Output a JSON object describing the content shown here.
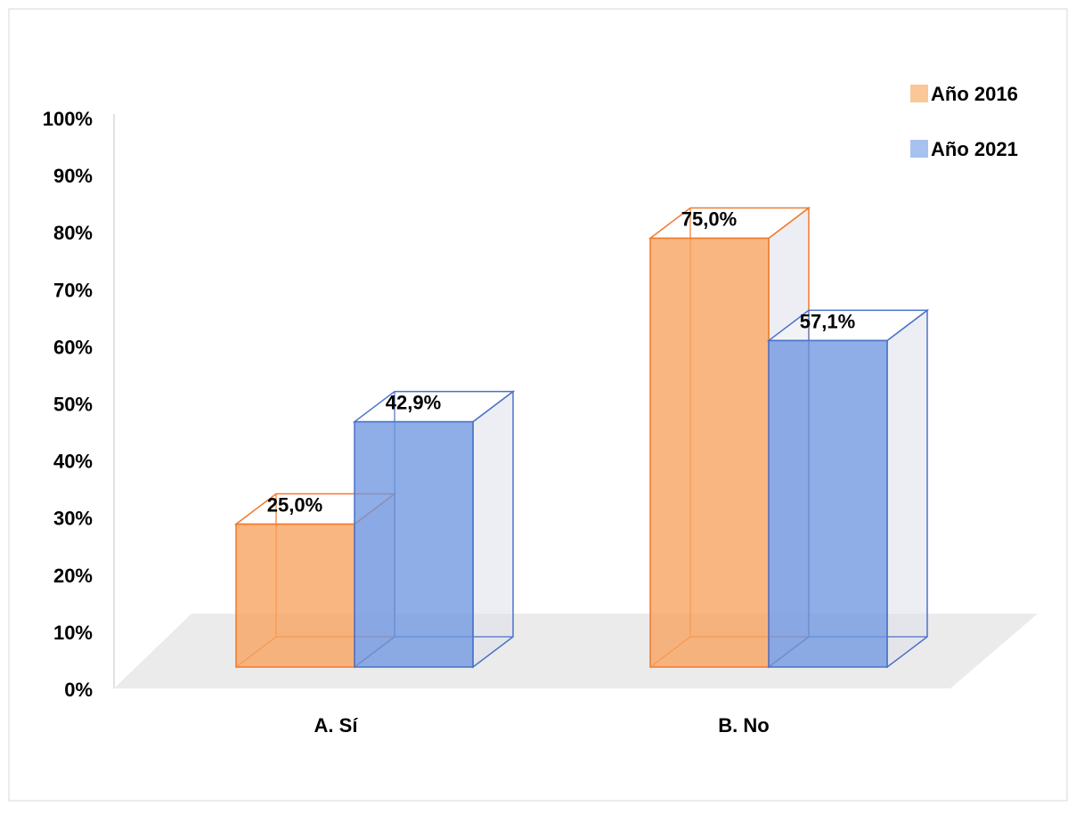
{
  "chart_data": {
    "type": "bar",
    "title": "",
    "xlabel": "",
    "ylabel": "",
    "categories": [
      "A. Sí",
      "B. No"
    ],
    "series": [
      {
        "name": "Año 2016",
        "values": [
          25.0,
          75.0
        ],
        "labels": [
          "25,0%",
          "75,0%"
        ],
        "color": "#F8A15C"
      },
      {
        "name": "Año 2021",
        "values": [
          42.9,
          57.1
        ],
        "labels": [
          "42,9%",
          "57,1%"
        ],
        "color": "#6F96DF"
      }
    ],
    "ylim": [
      0,
      100
    ],
    "yticks": [
      "0%",
      "10%",
      "20%",
      "30%",
      "40%",
      "50%",
      "60%",
      "70%",
      "80%",
      "90%",
      "100%"
    ],
    "grid": false,
    "legend": "top-right",
    "style": "3d-clustered-column"
  },
  "colors": {
    "series_2016_edge": "#F07A2C",
    "series_2021_edge": "#4A72C9",
    "floor": "#E4E4E4",
    "axis": "#D9D9D9"
  }
}
